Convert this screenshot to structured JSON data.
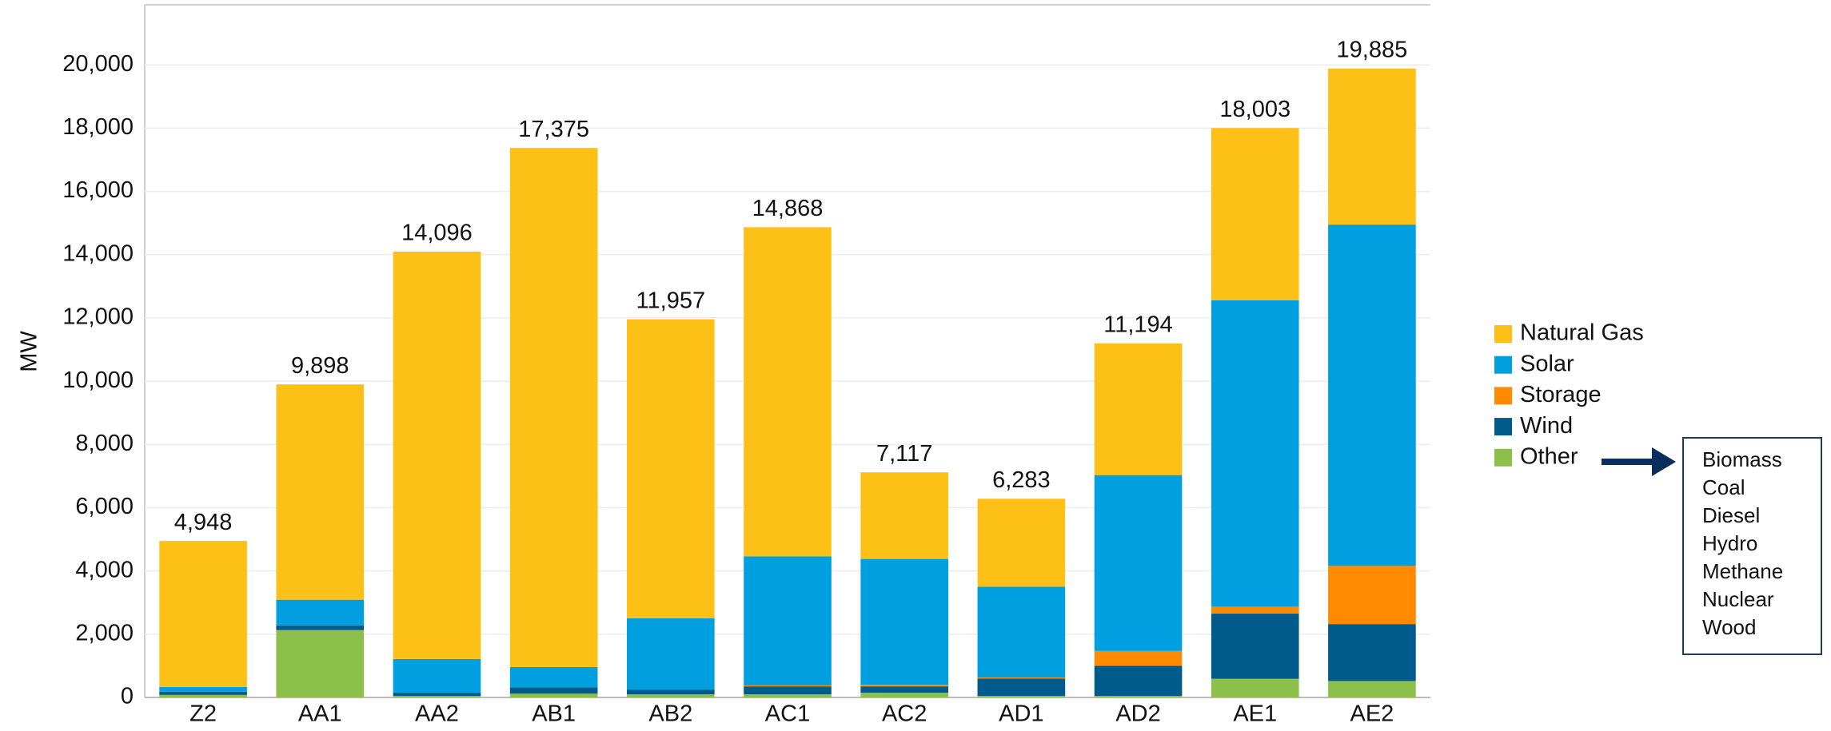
{
  "chart_data": {
    "type": "stacked_bar",
    "ylabel": "MW",
    "categories": [
      "Z2",
      "AA1",
      "AA2",
      "AB1",
      "AB2",
      "AC1",
      "AC2",
      "AD1",
      "AD2",
      "AE1",
      "AE2"
    ],
    "series": [
      {
        "name": "Other",
        "color": "#8dc04a",
        "values": [
          80,
          2130,
          50,
          120,
          100,
          100,
          150,
          50,
          50,
          590,
          520
        ]
      },
      {
        "name": "Wind",
        "color": "#005a8c",
        "values": [
          100,
          150,
          100,
          200,
          150,
          250,
          200,
          550,
          950,
          2060,
          1800
        ]
      },
      {
        "name": "Storage",
        "color": "#ff8a00",
        "values": [
          0,
          0,
          0,
          0,
          0,
          30,
          50,
          30,
          470,
          220,
          1840
        ]
      },
      {
        "name": "Solar",
        "color": "#00a0e0",
        "values": [
          150,
          810,
          1065,
          640,
          2250,
          4080,
          3980,
          2870,
          5560,
          9690,
          10790
        ]
      },
      {
        "name": "Natural Gas",
        "color": "#fdc016",
        "values": [
          4618,
          6808,
          12881,
          16415,
          9457,
          10408,
          2737,
          2783,
          4164,
          5443,
          4935
        ]
      }
    ],
    "totals": [
      4948,
      9898,
      14096,
      17375,
      11957,
      14868,
      7117,
      6283,
      11194,
      18003,
      19885
    ],
    "total_labels": [
      "4,948",
      "9,898",
      "14,096",
      "17,375",
      "11,957",
      "14,868",
      "7,117",
      "6,283",
      "11,194",
      "18,003",
      "19,885"
    ],
    "ylim": [
      0,
      21900
    ],
    "yticks": [
      0,
      {
        "value": 2000,
        "label": "2,000"
      },
      {
        "value": 4000,
        "label": "4,000"
      },
      {
        "value": 6000,
        "label": "6,000"
      },
      {
        "value": 8000,
        "label": "8,000"
      },
      {
        "value": 10000,
        "label": "10,000"
      },
      {
        "value": 12000,
        "label": "12,000"
      },
      {
        "value": 14000,
        "label": "14,000"
      },
      {
        "value": 16000,
        "label": "16,000"
      },
      {
        "value": 18000,
        "label": "18,000"
      },
      {
        "value": 20000,
        "label": "20,000"
      }
    ],
    "grid": true,
    "other_breakdown": [
      "Biomass",
      "Coal",
      "Diesel",
      "Hydro",
      "Methane",
      "Nuclear",
      "Wood"
    ]
  }
}
